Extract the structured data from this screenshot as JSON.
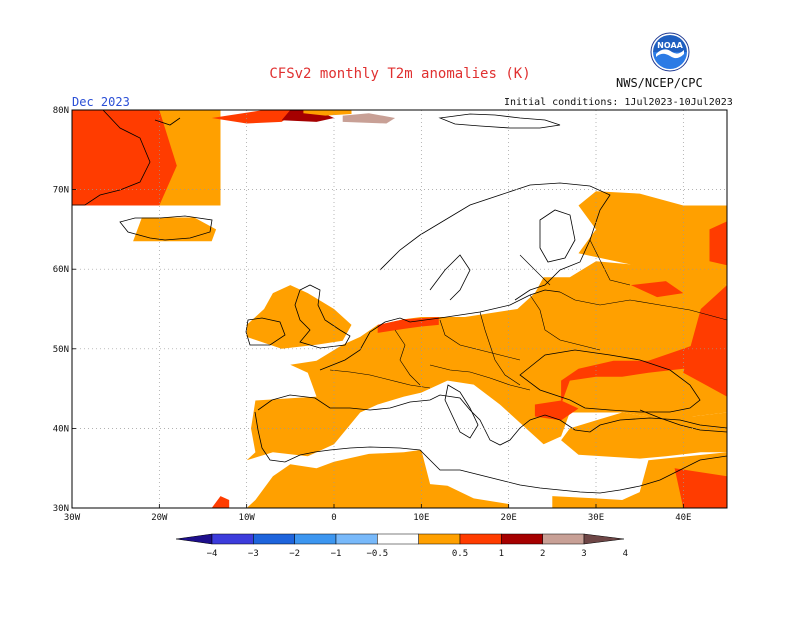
{
  "header": {
    "title": "CFSv2 monthly T2m anomalies (K)",
    "org": "NWS/NCEP/CPC",
    "logo_text": "NOAA",
    "month": "Dec 2023",
    "initial_conditions": "Initial conditions: 1Jul2023-10Jul2023"
  },
  "map": {
    "lon_range": [
      -30,
      45
    ],
    "lat_range": [
      30,
      80
    ],
    "lon_ticks": [
      {
        "value": -30,
        "label": "30W"
      },
      {
        "value": -20,
        "label": "20W"
      },
      {
        "value": -10,
        "label": "10W"
      },
      {
        "value": 0,
        "label": "0"
      },
      {
        "value": 10,
        "label": "10E"
      },
      {
        "value": 20,
        "label": "20E"
      },
      {
        "value": 30,
        "label": "30E"
      },
      {
        "value": 40,
        "label": "40E"
      }
    ],
    "lat_ticks": [
      {
        "value": 30,
        "label": "30N"
      },
      {
        "value": 40,
        "label": "40N"
      },
      {
        "value": 50,
        "label": "50N"
      },
      {
        "value": 60,
        "label": "60N"
      },
      {
        "value": 70,
        "label": "70N"
      },
      {
        "value": 80,
        "label": "80N"
      }
    ],
    "grid": true,
    "colors": {
      "orange": "#ffa000",
      "red_orange": "#ff3c00",
      "dark_red": "#a50000",
      "tan": "#c8a096",
      "coast": "#000000",
      "grid": "#999999"
    },
    "anomaly_regions": [
      {
        "level": "0.5-1",
        "polygon": [
          [
            -30,
            68
          ],
          [
            -13,
            68
          ],
          [
            -13,
            80
          ],
          [
            -30,
            80
          ]
        ],
        "note": "greenland"
      },
      {
        "level": "1-2",
        "polygon": [
          [
            -30,
            68
          ],
          [
            -20,
            68
          ],
          [
            -18,
            73
          ],
          [
            -20,
            80
          ],
          [
            -30,
            80
          ]
        ]
      },
      {
        "level": "0.5-1",
        "polygon": [
          [
            -23,
            63.5
          ],
          [
            -14,
            63.5
          ],
          [
            -13.5,
            65
          ],
          [
            -16,
            66.5
          ],
          [
            -22,
            66.5
          ]
        ]
      },
      {
        "level": "0.5-1",
        "polygon": [
          [
            -10,
            51.5
          ],
          [
            -6,
            50
          ],
          [
            -2,
            50.5
          ],
          [
            1,
            51
          ],
          [
            2,
            53
          ],
          [
            0,
            55
          ],
          [
            -3,
            57
          ],
          [
            -5,
            58
          ],
          [
            -7,
            57
          ],
          [
            -8,
            55
          ],
          [
            -10,
            53
          ]
        ]
      },
      {
        "level": "0.5-1",
        "polygon": [
          [
            -10,
            36
          ],
          [
            -7,
            37
          ],
          [
            -3,
            36.5
          ],
          [
            0,
            38
          ],
          [
            3,
            42
          ],
          [
            5,
            43
          ],
          [
            8,
            44
          ],
          [
            10,
            44.5
          ],
          [
            13,
            46
          ],
          [
            16,
            45.5
          ],
          [
            19,
            43
          ],
          [
            22,
            40
          ],
          [
            24,
            38
          ],
          [
            26,
            39
          ],
          [
            27,
            42
          ],
          [
            30,
            42
          ],
          [
            33,
            42
          ],
          [
            36,
            41.5
          ],
          [
            41,
            41.5
          ],
          [
            45,
            42
          ],
          [
            45,
            58
          ],
          [
            40,
            59.5
          ],
          [
            35,
            60.5
          ],
          [
            30,
            61
          ],
          [
            27,
            59
          ],
          [
            24,
            59
          ],
          [
            23,
            57
          ],
          [
            21,
            55
          ],
          [
            18,
            54.5
          ],
          [
            15,
            54
          ],
          [
            12,
            54
          ],
          [
            10,
            54
          ],
          [
            8,
            53.7
          ],
          [
            5,
            53
          ],
          [
            3,
            51.5
          ],
          [
            1,
            50.5
          ],
          [
            -2,
            48.5
          ],
          [
            -5,
            48
          ],
          [
            -3,
            47
          ],
          [
            -2,
            44
          ],
          [
            -9,
            43.5
          ],
          [
            -9.5,
            40
          ],
          [
            -9,
            37
          ]
        ]
      },
      {
        "level": "0.5-1",
        "polygon": [
          [
            28,
            62
          ],
          [
            30,
            65
          ],
          [
            28,
            68
          ],
          [
            30,
            69.8
          ],
          [
            35,
            69.5
          ],
          [
            40,
            68
          ],
          [
            45,
            68
          ],
          [
            45,
            58
          ]
        ]
      },
      {
        "level": "0.5-1",
        "polygon": [
          [
            26,
            38.5
          ],
          [
            28,
            36.7
          ],
          [
            35,
            36.2
          ],
          [
            38,
            36.5
          ],
          [
            42,
            37
          ],
          [
            45,
            37
          ],
          [
            45,
            42
          ],
          [
            41,
            41.5
          ],
          [
            36,
            41.5
          ],
          [
            33,
            42
          ],
          [
            30,
            41
          ],
          [
            27,
            40
          ]
        ]
      },
      {
        "level": "0.5-1",
        "polygon": [
          [
            -17,
            30
          ],
          [
            -10,
            30
          ],
          [
            -9,
            31
          ],
          [
            -7,
            34
          ],
          [
            -5,
            35.5
          ],
          [
            -2,
            35
          ],
          [
            0,
            35.8
          ],
          [
            4,
            36.8
          ],
          [
            8,
            37
          ],
          [
            10,
            37.3
          ],
          [
            11,
            33
          ],
          [
            13,
            32.8
          ],
          [
            16,
            31.2
          ],
          [
            20,
            30.5
          ],
          [
            20,
            30
          ]
        ]
      },
      {
        "level": "0.5-1",
        "polygon": [
          [
            25,
            30
          ],
          [
            25,
            31.5
          ],
          [
            30,
            31.2
          ],
          [
            33,
            31
          ],
          [
            35,
            32
          ],
          [
            35.5,
            34
          ],
          [
            36,
            36
          ],
          [
            45,
            37
          ],
          [
            45,
            30
          ]
        ]
      },
      {
        "level": "1-2",
        "polygon": [
          [
            26,
            43
          ],
          [
            27,
            46
          ],
          [
            30,
            46.5
          ],
          [
            33,
            46.5
          ],
          [
            36,
            47
          ],
          [
            40,
            47.5
          ],
          [
            45,
            47
          ],
          [
            45,
            52
          ],
          [
            40,
            50
          ],
          [
            36,
            48.5
          ],
          [
            32,
            48.5
          ],
          [
            28,
            47.5
          ],
          [
            26,
            46
          ]
        ]
      },
      {
        "level": "1-2",
        "polygon": [
          [
            40,
            47
          ],
          [
            45,
            44
          ],
          [
            45,
            58
          ],
          [
            42,
            55
          ],
          [
            41,
            51
          ]
        ]
      },
      {
        "level": "1-2",
        "polygon": [
          [
            23,
            41.5
          ],
          [
            26,
            41
          ],
          [
            28,
            42.5
          ],
          [
            26,
            43.5
          ],
          [
            23,
            43
          ]
        ]
      },
      {
        "level": "1-2",
        "polygon": [
          [
            5,
            52
          ],
          [
            8,
            52.5
          ],
          [
            10,
            52.8
          ],
          [
            12,
            53
          ],
          [
            12,
            54
          ],
          [
            8,
            53.7
          ],
          [
            5,
            53
          ]
        ]
      },
      {
        "level": "1-2",
        "polygon": [
          [
            34,
            58
          ],
          [
            38,
            58.5
          ],
          [
            40,
            57
          ],
          [
            37,
            56.5
          ]
        ]
      },
      {
        "level": "1-2",
        "polygon": [
          [
            43,
            61
          ],
          [
            45,
            60.5
          ],
          [
            45,
            66
          ],
          [
            43,
            65
          ]
        ]
      },
      {
        "level": "1-2",
        "polygon": [
          [
            39,
            35
          ],
          [
            45,
            34
          ],
          [
            45,
            30
          ],
          [
            40,
            30
          ]
        ]
      },
      {
        "level": "1-2",
        "polygon": [
          [
            -14,
            30
          ],
          [
            -13,
            31.5
          ],
          [
            -12,
            31
          ],
          [
            -12,
            30
          ]
        ]
      },
      {
        "level": "1-2",
        "polygon": [
          [
            -14,
            79
          ],
          [
            -11,
            79.5
          ],
          [
            -8,
            80
          ],
          [
            -4,
            80
          ],
          [
            -6,
            78.5
          ],
          [
            -10,
            78.3
          ]
        ]
      },
      {
        "level": "2-3",
        "polygon": [
          [
            -6,
            78.7
          ],
          [
            -2,
            78.5
          ],
          [
            0,
            79
          ],
          [
            -2,
            80
          ],
          [
            -5,
            80
          ]
        ]
      },
      {
        "level": "3-4",
        "polygon": [
          [
            1,
            78.5
          ],
          [
            6,
            78.3
          ],
          [
            7,
            79
          ],
          [
            4,
            79.6
          ],
          [
            1,
            79.3
          ]
        ]
      },
      {
        "level": "0.5-1",
        "polygon": [
          [
            -3.5,
            79.6
          ],
          [
            -1,
            79.3
          ],
          [
            2,
            79.5
          ],
          [
            2,
            80
          ],
          [
            -3.5,
            80
          ]
        ]
      }
    ]
  },
  "colorbar": {
    "labels": [
      "−4",
      "−3",
      "−2",
      "−1",
      "−0.5",
      "0.5",
      "1",
      "2",
      "3",
      "4"
    ],
    "colors": [
      "#1e0f8c",
      "#3c3cdc",
      "#1e64dc",
      "#3c96f0",
      "#78b9fa",
      "#ffffff",
      "#ffa000",
      "#ff3c00",
      "#a50000",
      "#c8a096",
      "#6e4646"
    ]
  }
}
